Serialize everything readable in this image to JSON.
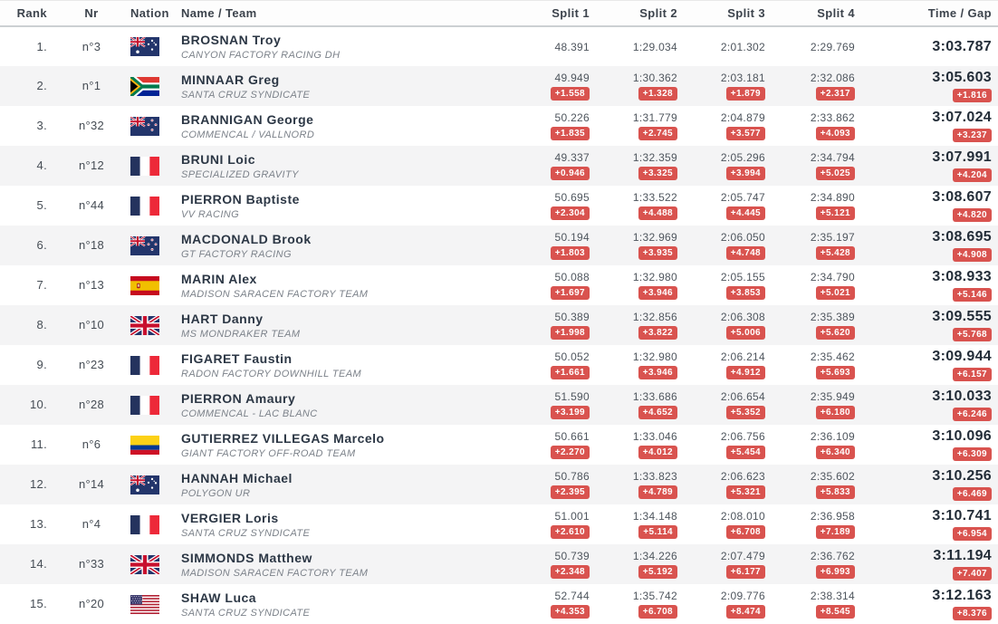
{
  "columns": [
    "Rank",
    "Nr",
    "Nation",
    "Name / Team",
    "Split 1",
    "Split 2",
    "Split 3",
    "Split 4",
    "Time / Gap"
  ],
  "colors": {
    "gap_badge_bg": "#d9534f",
    "gap_badge_text": "#ffffff",
    "header_text": "#3c434c",
    "rider_name_text": "#2c3745",
    "team_text": "#7c828a",
    "split_time_text": "#4e555d",
    "total_time_text": "#232d38",
    "row_alt_bg": "#f4f4f5",
    "header_rule": "#ccd0d3"
  },
  "rows": [
    {
      "rank": "1.",
      "nr": "n°3",
      "nation": "AUS",
      "name": "BROSNAN Troy",
      "team": "CANYON FACTORY RACING DH",
      "splits": [
        {
          "time": "48.391",
          "gap": ""
        },
        {
          "time": "1:29.034",
          "gap": ""
        },
        {
          "time": "2:01.302",
          "gap": ""
        },
        {
          "time": "2:29.769",
          "gap": ""
        }
      ],
      "total": {
        "time": "3:03.787",
        "gap": ""
      }
    },
    {
      "rank": "2.",
      "nr": "n°1",
      "nation": "RSA",
      "name": "MINNAAR Greg",
      "team": "SANTA CRUZ SYNDICATE",
      "splits": [
        {
          "time": "49.949",
          "gap": "+1.558"
        },
        {
          "time": "1:30.362",
          "gap": "+1.328"
        },
        {
          "time": "2:03.181",
          "gap": "+1.879"
        },
        {
          "time": "2:32.086",
          "gap": "+2.317"
        }
      ],
      "total": {
        "time": "3:05.603",
        "gap": "+1.816"
      }
    },
    {
      "rank": "3.",
      "nr": "n°32",
      "nation": "NZL",
      "name": "BRANNIGAN George",
      "team": "COMMENCAL / VALLNORD",
      "splits": [
        {
          "time": "50.226",
          "gap": "+1.835"
        },
        {
          "time": "1:31.779",
          "gap": "+2.745"
        },
        {
          "time": "2:04.879",
          "gap": "+3.577"
        },
        {
          "time": "2:33.862",
          "gap": "+4.093"
        }
      ],
      "total": {
        "time": "3:07.024",
        "gap": "+3.237"
      }
    },
    {
      "rank": "4.",
      "nr": "n°12",
      "nation": "FRA",
      "name": "BRUNI Loic",
      "team": "SPECIALIZED GRAVITY",
      "splits": [
        {
          "time": "49.337",
          "gap": "+0.946"
        },
        {
          "time": "1:32.359",
          "gap": "+3.325"
        },
        {
          "time": "2:05.296",
          "gap": "+3.994"
        },
        {
          "time": "2:34.794",
          "gap": "+5.025"
        }
      ],
      "total": {
        "time": "3:07.991",
        "gap": "+4.204"
      }
    },
    {
      "rank": "5.",
      "nr": "n°44",
      "nation": "FRA",
      "name": "PIERRON Baptiste",
      "team": "VV RACING",
      "splits": [
        {
          "time": "50.695",
          "gap": "+2.304"
        },
        {
          "time": "1:33.522",
          "gap": "+4.488"
        },
        {
          "time": "2:05.747",
          "gap": "+4.445"
        },
        {
          "time": "2:34.890",
          "gap": "+5.121"
        }
      ],
      "total": {
        "time": "3:08.607",
        "gap": "+4.820"
      }
    },
    {
      "rank": "6.",
      "nr": "n°18",
      "nation": "NZL",
      "name": "MACDONALD Brook",
      "team": "GT FACTORY RACING",
      "splits": [
        {
          "time": "50.194",
          "gap": "+1.803"
        },
        {
          "time": "1:32.969",
          "gap": "+3.935"
        },
        {
          "time": "2:06.050",
          "gap": "+4.748"
        },
        {
          "time": "2:35.197",
          "gap": "+5.428"
        }
      ],
      "total": {
        "time": "3:08.695",
        "gap": "+4.908"
      }
    },
    {
      "rank": "7.",
      "nr": "n°13",
      "nation": "ESP",
      "name": "MARIN Alex",
      "team": "MADISON SARACEN FACTORY TEAM",
      "splits": [
        {
          "time": "50.088",
          "gap": "+1.697"
        },
        {
          "time": "1:32.980",
          "gap": "+3.946"
        },
        {
          "time": "2:05.155",
          "gap": "+3.853"
        },
        {
          "time": "2:34.790",
          "gap": "+5.021"
        }
      ],
      "total": {
        "time": "3:08.933",
        "gap": "+5.146"
      }
    },
    {
      "rank": "8.",
      "nr": "n°10",
      "nation": "GBR",
      "name": "HART Danny",
      "team": "MS MONDRAKER TEAM",
      "splits": [
        {
          "time": "50.389",
          "gap": "+1.998"
        },
        {
          "time": "1:32.856",
          "gap": "+3.822"
        },
        {
          "time": "2:06.308",
          "gap": "+5.006"
        },
        {
          "time": "2:35.389",
          "gap": "+5.620"
        }
      ],
      "total": {
        "time": "3:09.555",
        "gap": "+5.768"
      }
    },
    {
      "rank": "9.",
      "nr": "n°23",
      "nation": "FRA",
      "name": "FIGARET Faustin",
      "team": "RADON FACTORY DOWNHILL TEAM",
      "splits": [
        {
          "time": "50.052",
          "gap": "+1.661"
        },
        {
          "time": "1:32.980",
          "gap": "+3.946"
        },
        {
          "time": "2:06.214",
          "gap": "+4.912"
        },
        {
          "time": "2:35.462",
          "gap": "+5.693"
        }
      ],
      "total": {
        "time": "3:09.944",
        "gap": "+6.157"
      }
    },
    {
      "rank": "10.",
      "nr": "n°28",
      "nation": "FRA",
      "name": "PIERRON Amaury",
      "team": "COMMENCAL - LAC BLANC",
      "splits": [
        {
          "time": "51.590",
          "gap": "+3.199"
        },
        {
          "time": "1:33.686",
          "gap": "+4.652"
        },
        {
          "time": "2:06.654",
          "gap": "+5.352"
        },
        {
          "time": "2:35.949",
          "gap": "+6.180"
        }
      ],
      "total": {
        "time": "3:10.033",
        "gap": "+6.246"
      }
    },
    {
      "rank": "11.",
      "nr": "n°6",
      "nation": "COL",
      "name": "GUTIERREZ VILLEGAS Marcelo",
      "team": "GIANT FACTORY OFF-ROAD TEAM",
      "splits": [
        {
          "time": "50.661",
          "gap": "+2.270"
        },
        {
          "time": "1:33.046",
          "gap": "+4.012"
        },
        {
          "time": "2:06.756",
          "gap": "+5.454"
        },
        {
          "time": "2:36.109",
          "gap": "+6.340"
        }
      ],
      "total": {
        "time": "3:10.096",
        "gap": "+6.309"
      }
    },
    {
      "rank": "12.",
      "nr": "n°14",
      "nation": "AUS",
      "name": "HANNAH Michael",
      "team": "POLYGON UR",
      "splits": [
        {
          "time": "50.786",
          "gap": "+2.395"
        },
        {
          "time": "1:33.823",
          "gap": "+4.789"
        },
        {
          "time": "2:06.623",
          "gap": "+5.321"
        },
        {
          "time": "2:35.602",
          "gap": "+5.833"
        }
      ],
      "total": {
        "time": "3:10.256",
        "gap": "+6.469"
      }
    },
    {
      "rank": "13.",
      "nr": "n°4",
      "nation": "FRA",
      "name": "VERGIER Loris",
      "team": "SANTA CRUZ SYNDICATE",
      "splits": [
        {
          "time": "51.001",
          "gap": "+2.610"
        },
        {
          "time": "1:34.148",
          "gap": "+5.114"
        },
        {
          "time": "2:08.010",
          "gap": "+6.708"
        },
        {
          "time": "2:36.958",
          "gap": "+7.189"
        }
      ],
      "total": {
        "time": "3:10.741",
        "gap": "+6.954"
      }
    },
    {
      "rank": "14.",
      "nr": "n°33",
      "nation": "GBR",
      "name": "SIMMONDS Matthew",
      "team": "MADISON SARACEN FACTORY TEAM",
      "splits": [
        {
          "time": "50.739",
          "gap": "+2.348"
        },
        {
          "time": "1:34.226",
          "gap": "+5.192"
        },
        {
          "time": "2:07.479",
          "gap": "+6.177"
        },
        {
          "time": "2:36.762",
          "gap": "+6.993"
        }
      ],
      "total": {
        "time": "3:11.194",
        "gap": "+7.407"
      }
    },
    {
      "rank": "15.",
      "nr": "n°20",
      "nation": "USA",
      "name": "SHAW Luca",
      "team": "SANTA CRUZ SYNDICATE",
      "splits": [
        {
          "time": "52.744",
          "gap": "+4.353"
        },
        {
          "time": "1:35.742",
          "gap": "+6.708"
        },
        {
          "time": "2:09.776",
          "gap": "+8.474"
        },
        {
          "time": "2:38.314",
          "gap": "+8.545"
        }
      ],
      "total": {
        "time": "3:12.163",
        "gap": "+8.376"
      }
    }
  ]
}
